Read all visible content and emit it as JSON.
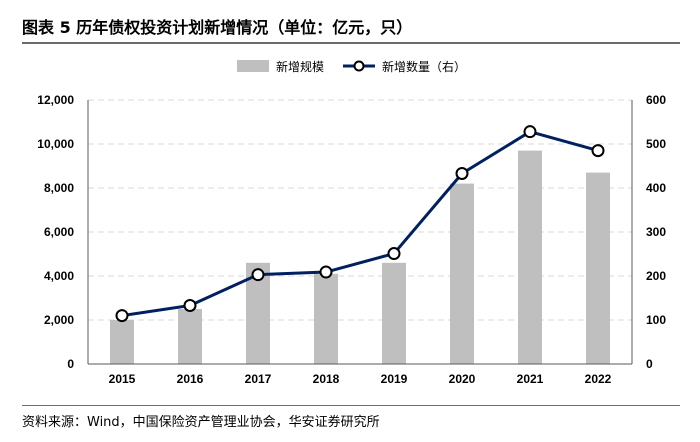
{
  "title": "图表 5  历年债权投资计划新增情况（单位：亿元，只）",
  "source": "资料来源：Wind，中国保险资产管理业协会，华安证券研究所",
  "chart_data": {
    "type": "bar+line",
    "categories": [
      "2015",
      "2016",
      "2017",
      "2018",
      "2019",
      "2020",
      "2021",
      "2022"
    ],
    "series": [
      {
        "name": "新增规模",
        "type": "bar",
        "axis": "left",
        "color": "#bfbfbf",
        "values": [
          2000,
          2500,
          4600,
          4100,
          4600,
          8200,
          9700,
          8700
        ]
      },
      {
        "name": "新增数量（右）",
        "type": "line",
        "axis": "right",
        "color": "#002060",
        "values": [
          110,
          133,
          203,
          209,
          251,
          433,
          528,
          485
        ]
      }
    ],
    "y_left": {
      "min": 0,
      "max": 12000,
      "step": 2000,
      "ticks": [
        "0",
        "2,000",
        "4,000",
        "6,000",
        "8,000",
        "10,000",
        "12,000"
      ]
    },
    "y_right": {
      "min": 0,
      "max": 600,
      "step": 100,
      "ticks": [
        "0",
        "100",
        "200",
        "300",
        "400",
        "500",
        "600"
      ]
    },
    "grid": true,
    "legend": "top-center"
  }
}
